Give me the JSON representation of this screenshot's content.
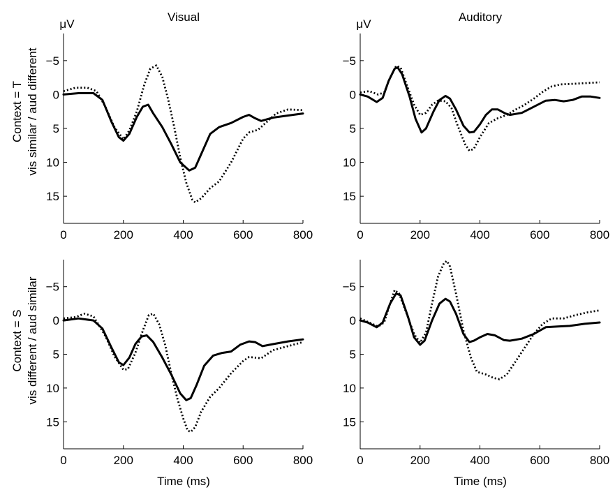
{
  "figure": {
    "column_titles": [
      "Visual",
      "Auditory"
    ],
    "row_labels": [
      [
        "Context = T",
        "vis similar / aud different"
      ],
      [
        "Context = S",
        "vis different / aud similar"
      ]
    ],
    "unit_label": "μV",
    "xlabel": "Time (ms)"
  },
  "chart_data": [
    {
      "type": "line",
      "column": "Visual",
      "row": "Context = T",
      "xlim": [
        0,
        800
      ],
      "ylim": [
        -9,
        19
      ],
      "y_inverted": true,
      "xticks": [
        0,
        200,
        400,
        600,
        800
      ],
      "yticks": [
        -5,
        0,
        5,
        10,
        15
      ],
      "ytick_labels": [
        "−5",
        "0",
        "5",
        "10",
        "15"
      ],
      "series": [
        {
          "style": "solid",
          "color": "#000000",
          "points": [
            [
              0,
              0
            ],
            [
              50,
              -0.2
            ],
            [
              100,
              -0.2
            ],
            [
              130,
              0.8
            ],
            [
              160,
              4
            ],
            [
              185,
              6.3
            ],
            [
              200,
              6.8
            ],
            [
              220,
              5.8
            ],
            [
              245,
              3.3
            ],
            [
              265,
              1.8
            ],
            [
              283,
              1.5
            ],
            [
              300,
              2.8
            ],
            [
              330,
              4.8
            ],
            [
              360,
              7.3
            ],
            [
              390,
              10
            ],
            [
              420,
              11.2
            ],
            [
              440,
              10.8
            ],
            [
              460,
              8.8
            ],
            [
              490,
              5.8
            ],
            [
              520,
              4.8
            ],
            [
              560,
              4.2
            ],
            [
              600,
              3.3
            ],
            [
              620,
              3
            ],
            [
              640,
              3.5
            ],
            [
              660,
              3.9
            ],
            [
              700,
              3.4
            ],
            [
              750,
              3.1
            ],
            [
              800,
              2.8
            ]
          ]
        },
        {
          "style": "dotted",
          "color": "#000000",
          "points": [
            [
              0,
              -0.5
            ],
            [
              40,
              -1
            ],
            [
              80,
              -1
            ],
            [
              110,
              -0.5
            ],
            [
              140,
              1.8
            ],
            [
              170,
              4.8
            ],
            [
              200,
              6.6
            ],
            [
              220,
              5.3
            ],
            [
              245,
              2.5
            ],
            [
              270,
              -1.5
            ],
            [
              290,
              -3.8
            ],
            [
              310,
              -4.3
            ],
            [
              330,
              -2.6
            ],
            [
              350,
              0.8
            ],
            [
              370,
              4.8
            ],
            [
              390,
              9.3
            ],
            [
              410,
              13
            ],
            [
              430,
              15.5
            ],
            [
              440,
              15.9
            ],
            [
              460,
              15.3
            ],
            [
              490,
              13.8
            ],
            [
              520,
              12.8
            ],
            [
              560,
              10
            ],
            [
              600,
              6.5
            ],
            [
              620,
              5.6
            ],
            [
              650,
              5.2
            ],
            [
              680,
              4
            ],
            [
              710,
              2.8
            ],
            [
              750,
              2.2
            ],
            [
              800,
              2.3
            ]
          ]
        }
      ]
    },
    {
      "type": "line",
      "column": "Auditory",
      "row": "Context = T",
      "xlim": [
        0,
        800
      ],
      "ylim": [
        -9,
        19
      ],
      "y_inverted": true,
      "xticks": [
        0,
        200,
        400,
        600,
        800
      ],
      "yticks": [
        -5,
        0,
        5,
        10,
        15
      ],
      "ytick_labels": [
        "−5",
        "0",
        "5",
        "10",
        "15"
      ],
      "series": [
        {
          "style": "solid",
          "color": "#000000",
          "points": [
            [
              0,
              0
            ],
            [
              25,
              0.3
            ],
            [
              55,
              1.1
            ],
            [
              75,
              0.5
            ],
            [
              95,
              -2
            ],
            [
              115,
              -3.8
            ],
            [
              125,
              -4
            ],
            [
              140,
              -3
            ],
            [
              165,
              0.3
            ],
            [
              185,
              3.6
            ],
            [
              205,
              5.6
            ],
            [
              220,
              5
            ],
            [
              245,
              2.5
            ],
            [
              265,
              0.8
            ],
            [
              285,
              0.2
            ],
            [
              300,
              0.6
            ],
            [
              320,
              2.2
            ],
            [
              345,
              4.6
            ],
            [
              365,
              5.6
            ],
            [
              380,
              5.5
            ],
            [
              400,
              4.4
            ],
            [
              420,
              3
            ],
            [
              440,
              2.2
            ],
            [
              460,
              2.2
            ],
            [
              485,
              2.8
            ],
            [
              500,
              3
            ],
            [
              540,
              2.7
            ],
            [
              580,
              1.8
            ],
            [
              620,
              0.9
            ],
            [
              650,
              0.8
            ],
            [
              680,
              1
            ],
            [
              710,
              0.8
            ],
            [
              740,
              0.3
            ],
            [
              770,
              0.3
            ],
            [
              800,
              0.5
            ]
          ]
        },
        {
          "style": "dotted",
          "color": "#000000",
          "points": [
            [
              0,
              -0.3
            ],
            [
              30,
              -0.5
            ],
            [
              60,
              0
            ],
            [
              80,
              -0.3
            ],
            [
              100,
              -2.5
            ],
            [
              120,
              -4.2
            ],
            [
              135,
              -4
            ],
            [
              155,
              -1.5
            ],
            [
              180,
              1.5
            ],
            [
              200,
              3
            ],
            [
              220,
              2.7
            ],
            [
              240,
              1.5
            ],
            [
              260,
              0.9
            ],
            [
              285,
              1
            ],
            [
              305,
              2
            ],
            [
              325,
              4.5
            ],
            [
              350,
              7.3
            ],
            [
              365,
              8.3
            ],
            [
              380,
              8
            ],
            [
              400,
              6.3
            ],
            [
              430,
              4.2
            ],
            [
              460,
              3.5
            ],
            [
              490,
              3
            ],
            [
              520,
              2.2
            ],
            [
              550,
              1.5
            ],
            [
              580,
              0.6
            ],
            [
              610,
              -0.4
            ],
            [
              640,
              -1.2
            ],
            [
              670,
              -1.5
            ],
            [
              720,
              -1.6
            ],
            [
              760,
              -1.7
            ],
            [
              800,
              -1.8
            ]
          ]
        }
      ]
    },
    {
      "type": "line",
      "column": "Visual",
      "row": "Context = S",
      "xlim": [
        0,
        800
      ],
      "ylim": [
        -9,
        19
      ],
      "y_inverted": true,
      "xticks": [
        0,
        200,
        400,
        600,
        800
      ],
      "yticks": [
        -5,
        0,
        5,
        10,
        15
      ],
      "ytick_labels": [
        "−5",
        "0",
        "5",
        "10",
        "15"
      ],
      "series": [
        {
          "style": "solid",
          "color": "#000000",
          "points": [
            [
              0,
              0
            ],
            [
              50,
              -0.3
            ],
            [
              100,
              0
            ],
            [
              130,
              1.2
            ],
            [
              160,
              4
            ],
            [
              185,
              6.2
            ],
            [
              200,
              6.6
            ],
            [
              220,
              5.5
            ],
            [
              240,
              3.5
            ],
            [
              260,
              2.4
            ],
            [
              278,
              2.2
            ],
            [
              300,
              3.2
            ],
            [
              330,
              5.5
            ],
            [
              360,
              8
            ],
            [
              390,
              10.8
            ],
            [
              410,
              11.8
            ],
            [
              425,
              11.5
            ],
            [
              445,
              9.5
            ],
            [
              470,
              6.7
            ],
            [
              500,
              5.2
            ],
            [
              530,
              4.8
            ],
            [
              560,
              4.6
            ],
            [
              590,
              3.6
            ],
            [
              620,
              3.1
            ],
            [
              640,
              3.2
            ],
            [
              665,
              3.8
            ],
            [
              700,
              3.5
            ],
            [
              750,
              3.1
            ],
            [
              800,
              2.8
            ]
          ]
        },
        {
          "style": "dotted",
          "color": "#000000",
          "points": [
            [
              0,
              -0.3
            ],
            [
              40,
              -0.5
            ],
            [
              70,
              -1
            ],
            [
              100,
              -0.6
            ],
            [
              140,
              2.3
            ],
            [
              170,
              5.3
            ],
            [
              200,
              7.3
            ],
            [
              215,
              7.2
            ],
            [
              240,
              4.8
            ],
            [
              265,
              1.5
            ],
            [
              285,
              -0.8
            ],
            [
              300,
              -1
            ],
            [
              320,
              0.6
            ],
            [
              340,
              3.7
            ],
            [
              360,
              7.8
            ],
            [
              380,
              11.5
            ],
            [
              400,
              14.5
            ],
            [
              415,
              16.3
            ],
            [
              425,
              16.5
            ],
            [
              440,
              15.8
            ],
            [
              460,
              13.5
            ],
            [
              490,
              11.3
            ],
            [
              520,
              10
            ],
            [
              560,
              7.8
            ],
            [
              600,
              6
            ],
            [
              620,
              5.4
            ],
            [
              660,
              5.6
            ],
            [
              700,
              4.4
            ],
            [
              750,
              3.8
            ],
            [
              800,
              3.2
            ]
          ]
        }
      ]
    },
    {
      "type": "line",
      "column": "Auditory",
      "row": "Context = S",
      "xlim": [
        0,
        800
      ],
      "ylim": [
        -9,
        19
      ],
      "y_inverted": true,
      "xticks": [
        0,
        200,
        400,
        600,
        800
      ],
      "yticks": [
        -5,
        0,
        5,
        10,
        15
      ],
      "ytick_labels": [
        "−5",
        "0",
        "5",
        "10",
        "15"
      ],
      "series": [
        {
          "style": "solid",
          "color": "#000000",
          "points": [
            [
              0,
              0
            ],
            [
              25,
              0.3
            ],
            [
              55,
              1
            ],
            [
              75,
              0.3
            ],
            [
              100,
              -2.5
            ],
            [
              120,
              -4
            ],
            [
              135,
              -3.7
            ],
            [
              160,
              -0.5
            ],
            [
              180,
              2.5
            ],
            [
              200,
              3.6
            ],
            [
              215,
              3
            ],
            [
              240,
              0
            ],
            [
              265,
              -2.5
            ],
            [
              285,
              -3.2
            ],
            [
              300,
              -2.8
            ],
            [
              320,
              -1
            ],
            [
              345,
              2
            ],
            [
              365,
              3.2
            ],
            [
              380,
              3
            ],
            [
              400,
              2.5
            ],
            [
              425,
              2
            ],
            [
              450,
              2.2
            ],
            [
              480,
              2.9
            ],
            [
              500,
              3
            ],
            [
              540,
              2.7
            ],
            [
              580,
              2
            ],
            [
              620,
              1
            ],
            [
              660,
              0.9
            ],
            [
              700,
              0.8
            ],
            [
              750,
              0.5
            ],
            [
              800,
              0.3
            ]
          ]
        },
        {
          "style": "dotted",
          "color": "#000000",
          "points": [
            [
              0,
              -0.3
            ],
            [
              30,
              0.3
            ],
            [
              60,
              0.9
            ],
            [
              80,
              0.3
            ],
            [
              100,
              -2.5
            ],
            [
              115,
              -4.5
            ],
            [
              130,
              -4
            ],
            [
              155,
              -1
            ],
            [
              180,
              2
            ],
            [
              200,
              3.3
            ],
            [
              220,
              1.8
            ],
            [
              240,
              -2.5
            ],
            [
              260,
              -6.5
            ],
            [
              280,
              -8.5
            ],
            [
              290,
              -8.8
            ],
            [
              300,
              -8
            ],
            [
              320,
              -4
            ],
            [
              345,
              1.5
            ],
            [
              370,
              5.5
            ],
            [
              390,
              7.6
            ],
            [
              420,
              8
            ],
            [
              445,
              8.5
            ],
            [
              465,
              8.7
            ],
            [
              490,
              8
            ],
            [
              520,
              6
            ],
            [
              550,
              4
            ],
            [
              580,
              2
            ],
            [
              610,
              0.5
            ],
            [
              640,
              -0.3
            ],
            [
              680,
              -0.3
            ],
            [
              720,
              -0.8
            ],
            [
              760,
              -1.2
            ],
            [
              800,
              -1.5
            ]
          ]
        }
      ]
    }
  ]
}
